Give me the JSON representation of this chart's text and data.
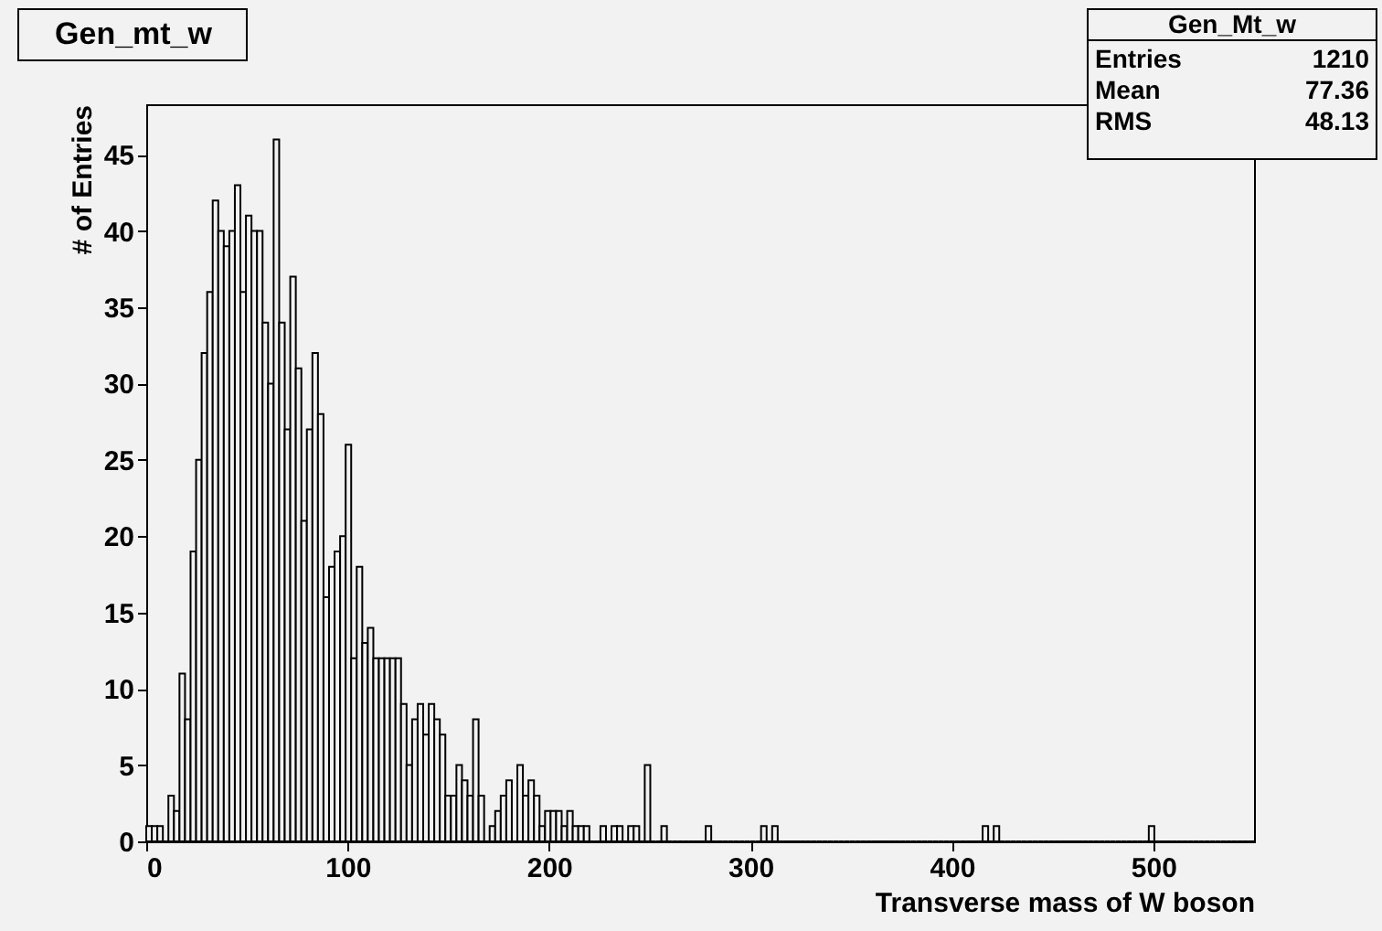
{
  "chart_data": {
    "type": "histogram",
    "title": "Gen_mt_w",
    "xlabel": "Transverse mass of W boson",
    "ylabel": "# of Entries",
    "annotations": [
      "Gen_Mt_w",
      "Entries",
      "1210",
      "Mean",
      "77.36",
      "RMS",
      "48.13"
    ],
    "color": "#000000",
    "bins": [
      0,
      2.75,
      5.5,
      8.25,
      11,
      13.75,
      16.5,
      19.25,
      22,
      24.75,
      27.5,
      30.25,
      33,
      35.75,
      38.5,
      41.25,
      44,
      46.75,
      49.5,
      52.25,
      55,
      57.75,
      60.5,
      63.25,
      66,
      68.75,
      71.5,
      74.25,
      77,
      79.75,
      82.5,
      85.25,
      88,
      90.75,
      93.5,
      96.25,
      99,
      101.75,
      104.5,
      107.25,
      110,
      112.75,
      115.5,
      118.25,
      121,
      123.75,
      126.5,
      129.25,
      132,
      134.75,
      137.5,
      140.25,
      143,
      145.75,
      148.5,
      151.25,
      154,
      156.75,
      159.5,
      162.25,
      165,
      167.75,
      170.5,
      173.25,
      176,
      178.75,
      181.5,
      184.25,
      187,
      189.75,
      192.5,
      195.25,
      198,
      200.75,
      203.5,
      206.25,
      209,
      211.75,
      214.5,
      217.25,
      220,
      222.75,
      225.5,
      228.25,
      231,
      233.75,
      236.5,
      239.25,
      242,
      244.75,
      247.5,
      250.25,
      253,
      255.75,
      258.5,
      261.25,
      264,
      266.75,
      269.5,
      272.25,
      275,
      277.75,
      280.5,
      283.25,
      286,
      288.75,
      291.5,
      294.25,
      297,
      299.75,
      302.5,
      305.25,
      308,
      310.75,
      313.5,
      316.25,
      319,
      321.75,
      324.5,
      327.25,
      330,
      332.75,
      335.5,
      338.25,
      341,
      343.75,
      346.5,
      349.25,
      352,
      354.75,
      357.5,
      360.25,
      363,
      365.75,
      368.5,
      371.25,
      374,
      376.75,
      379.5,
      382.25,
      385,
      387.75,
      390.5,
      393.25,
      396,
      398.75,
      401.5,
      404.25,
      407,
      409.75,
      412.5,
      415.25,
      418,
      420.75,
      423.5,
      426.25,
      429,
      431.75,
      434.5,
      437.25,
      440,
      442.75,
      445.5,
      448.25,
      451,
      453.75,
      456.5,
      459.25,
      462,
      464.75,
      467.5,
      470.25,
      473,
      475.75,
      478.5,
      481.25,
      484,
      486.75,
      489.5,
      492.25,
      495,
      497.75,
      500.5,
      503.25,
      506,
      508.75,
      511.5,
      514.25,
      517,
      519.75,
      522.5,
      525.25,
      528,
      530.75,
      533.5,
      536.25,
      539,
      541.75,
      544.5,
      547.25,
      550
    ],
    "values": [
      1,
      1,
      1,
      0,
      3,
      2,
      11,
      8,
      19,
      25,
      32,
      36,
      42,
      40,
      39,
      40,
      43,
      36,
      41,
      40,
      40,
      34,
      30,
      46,
      34,
      27,
      37,
      31,
      21,
      27,
      32,
      28,
      16,
      18,
      19,
      20,
      26,
      12,
      18,
      13,
      14,
      12,
      12,
      12,
      12,
      12,
      9,
      5,
      8,
      9,
      7,
      9,
      8,
      7,
      3,
      3,
      5,
      4,
      3,
      8,
      3,
      0,
      1,
      2,
      3,
      4,
      0,
      5,
      3,
      4,
      3,
      1,
      2,
      2,
      2,
      1,
      2,
      1,
      1,
      1,
      0,
      0,
      1,
      0,
      1,
      1,
      0,
      1,
      1,
      0,
      5,
      0,
      0,
      1,
      0,
      0,
      0,
      0,
      0,
      0,
      0,
      1,
      0,
      0,
      0,
      0,
      0,
      0,
      0,
      0,
      0,
      1,
      0,
      1,
      0,
      0,
      0,
      0,
      0,
      0,
      0,
      0,
      0,
      0,
      0,
      0,
      0,
      0,
      0,
      0,
      0,
      0,
      0,
      0,
      0,
      0,
      0,
      0,
      0,
      0,
      0,
      0,
      0,
      0,
      0,
      0,
      0,
      0,
      0,
      0,
      0,
      1,
      0,
      1,
      0,
      0,
      0,
      0,
      0,
      0,
      0,
      0,
      0,
      0,
      0,
      0,
      0,
      0,
      0,
      0,
      0,
      0,
      0,
      0,
      0,
      0,
      0,
      0,
      0,
      0,
      0,
      1,
      0,
      0,
      0,
      0,
      0,
      0,
      0,
      0,
      0,
      0,
      0,
      0,
      0,
      0,
      0,
      0,
      0,
      0
    ],
    "xlim": [
      0,
      550
    ],
    "ylim": [
      0,
      48.3
    ],
    "xticks": [
      0,
      100,
      200,
      300,
      400,
      500
    ],
    "yticks": [
      0,
      5,
      10,
      15,
      20,
      25,
      30,
      35,
      40,
      45
    ],
    "grid": false
  }
}
